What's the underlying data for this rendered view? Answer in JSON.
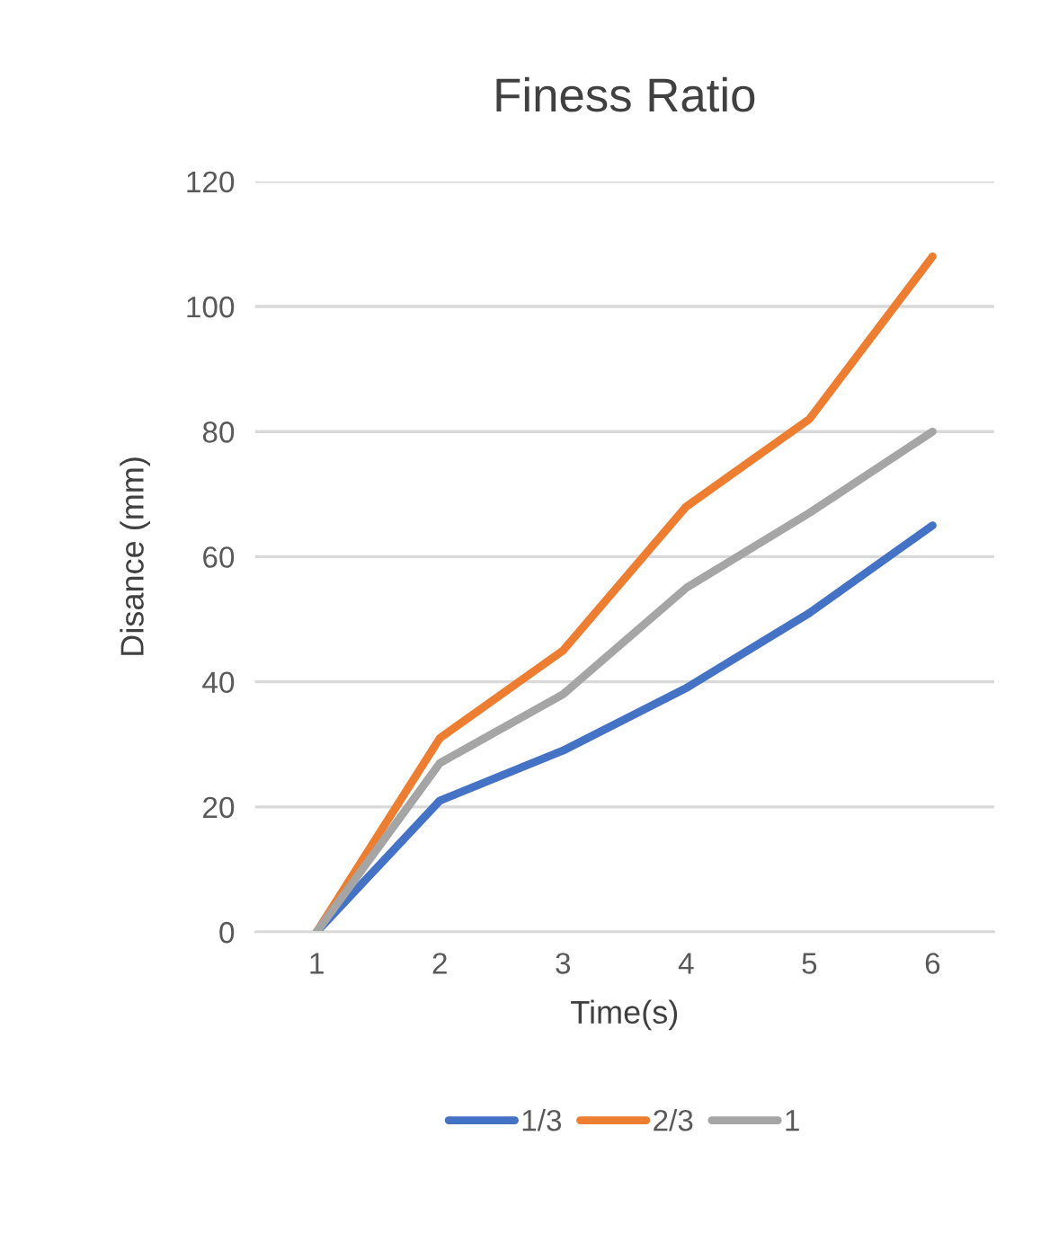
{
  "chart_data": {
    "type": "line",
    "title": "Finess Ratio",
    "xlabel": "Time(s)",
    "ylabel": "Disance (mm)",
    "categories": [
      "1",
      "2",
      "3",
      "4",
      "5",
      "6"
    ],
    "series": [
      {
        "name": "1/3",
        "color": "#4472c4",
        "values": [
          0,
          21,
          29,
          39,
          51,
          65
        ]
      },
      {
        "name": "2/3",
        "color": "#ed7d31",
        "values": [
          0,
          31,
          45,
          68,
          82,
          108
        ]
      },
      {
        "name": "1",
        "color": "#a5a5a5",
        "values": [
          0,
          27,
          38,
          55,
          67,
          80
        ]
      }
    ],
    "ylim": [
      0,
      120
    ],
    "yticks": [
      0,
      20,
      40,
      60,
      80,
      100,
      120
    ],
    "grid": "y",
    "legend": "bottom",
    "marker": "none",
    "line_style": "solid"
  }
}
